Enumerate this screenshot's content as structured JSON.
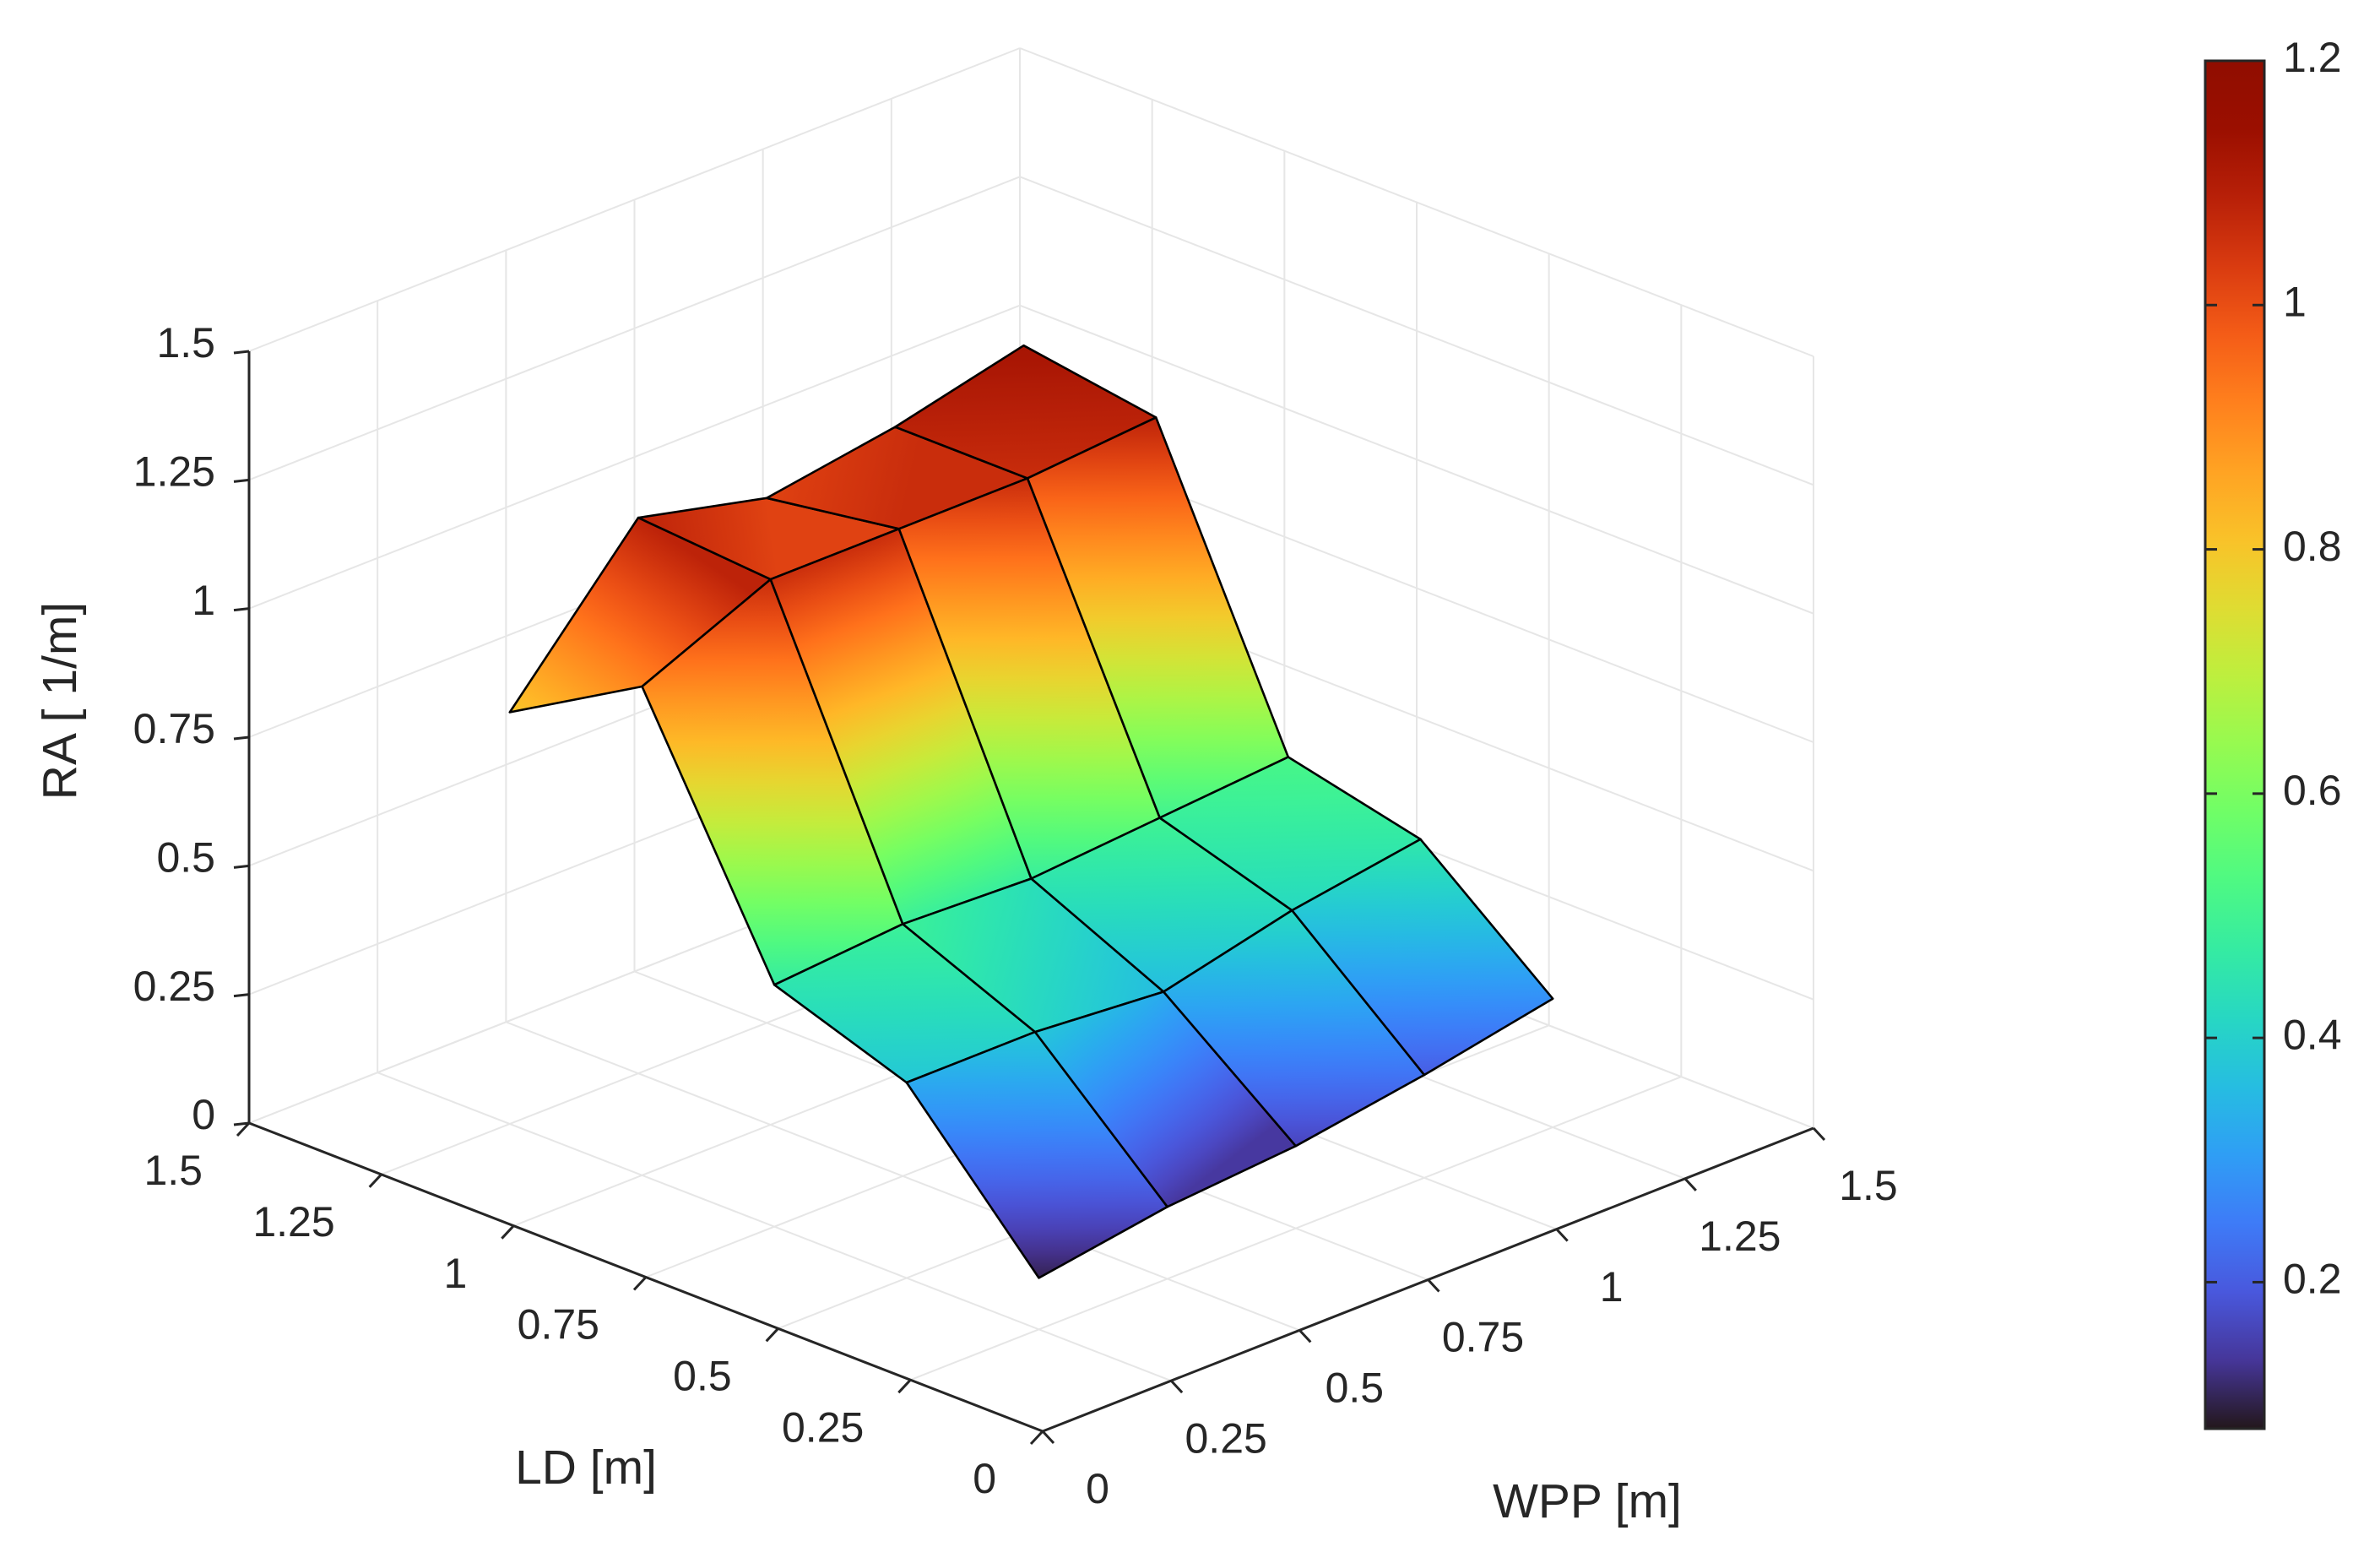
{
  "chart_data": {
    "type": "surface",
    "title": "",
    "xlabel": "WPP [m]",
    "ylabel": "LD [m]",
    "zlabel": "RA [ 1/m]",
    "xlim": [
      0,
      1.5
    ],
    "ylim": [
      0,
      1.5
    ],
    "zlim": [
      0,
      1.5
    ],
    "x_ticks": [
      "0",
      "0.25",
      "0.5",
      "0.75",
      "1",
      "1.25",
      "1.5"
    ],
    "y_ticks": [
      "0",
      "0.25",
      "0.5",
      "0.75",
      "1",
      "1.25",
      "1.5"
    ],
    "z_ticks": [
      "0",
      "0.25",
      "0.5",
      "0.75",
      "1",
      "1.25",
      "1.5"
    ],
    "x": [
      0.25,
      0.5,
      0.75,
      1.0,
      1.25
    ],
    "y": [
      0.25,
      0.5,
      0.75,
      1.0,
      1.25
    ],
    "z": [
      [
        0.1,
        0.14,
        0.16,
        0.2,
        0.25
      ],
      [
        0.38,
        0.38,
        0.36,
        0.42,
        0.46
      ],
      [
        0.47,
        0.49,
        0.48,
        0.5,
        0.52
      ],
      [
        0.95,
        1.06,
        1.06,
        1.06,
        1.08
      ],
      [
        0.8,
        1.08,
        1.02,
        1.06,
        1.12
      ]
    ],
    "colormap": "turbo",
    "colorbar": {
      "range": [
        0.08,
        1.2
      ],
      "ticks": [
        "0.2",
        "0.4",
        "0.6",
        "0.8",
        "1",
        "1.2"
      ]
    },
    "grid": true
  }
}
